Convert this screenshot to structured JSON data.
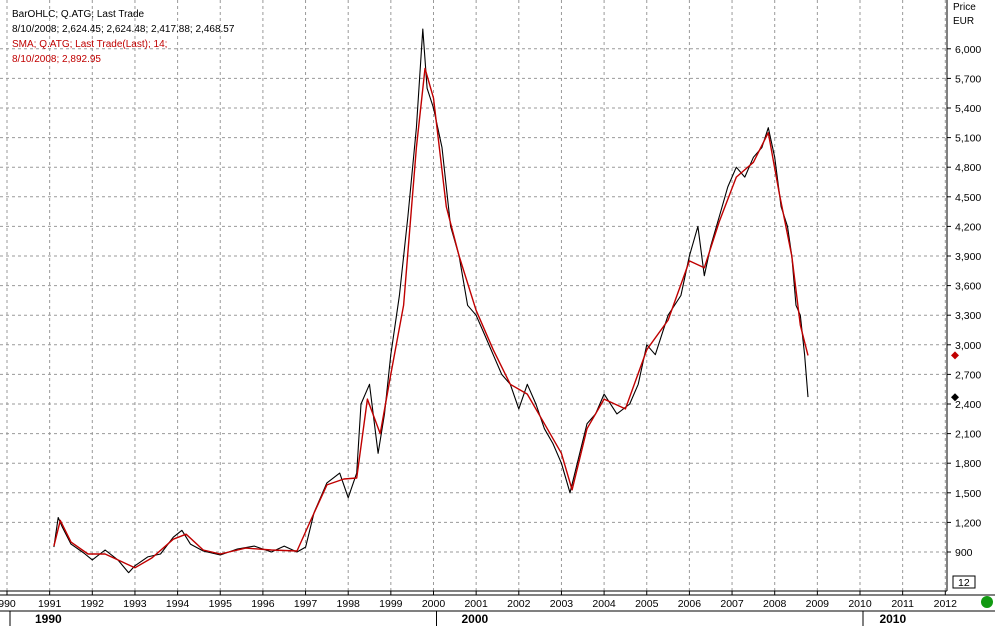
{
  "header": {
    "series_line": "BarOHLC; Q.ATG; Last Trade",
    "ohlc_line": "8/10/2008; 2,624.45; 2,624.48; 2,417.88; 2,468.57",
    "sma_line": "SMA; Q.ATG; Last Trade(Last); 14;",
    "sma_value_line": "8/10/2008; 2,892.95"
  },
  "axis": {
    "price_title": "Price",
    "currency": "EUR",
    "bottom_value": "12"
  },
  "colors": {
    "price_series": "#000000",
    "sma_series": "#c00000",
    "status": "#129a12"
  },
  "chart_data": {
    "type": "line",
    "title": "",
    "xlabel": "",
    "ylabel": "Price",
    "y_unit": "EUR",
    "ylim": [
      0,
      6300
    ],
    "y_ticks": [
      "900",
      "1,200",
      "1,500",
      "1,800",
      "2,100",
      "2,400",
      "2,700",
      "3,000",
      "3,300",
      "3,600",
      "3,900",
      "4,200",
      "4,500",
      "4,800",
      "5,100",
      "5,400",
      "5,700",
      "6,000"
    ],
    "x_ticks": [
      "990",
      "1991",
      "1992",
      "1993",
      "1994",
      "1995",
      "1996",
      "1997",
      "1998",
      "1999",
      "2000",
      "2001",
      "2002",
      "2003",
      "2004",
      "2005",
      "2006",
      "2007",
      "2008",
      "2009",
      "2010",
      "2011",
      "2012"
    ],
    "decades": [
      "1990",
      "2000",
      "2010"
    ],
    "grid": true,
    "series": [
      {
        "name": "Q.ATG",
        "role": "price",
        "x": [
          1991.1,
          1991.2,
          1991.3,
          1991.5,
          1991.8,
          1992.0,
          1992.3,
          1992.6,
          1992.85,
          1993.0,
          1993.3,
          1993.6,
          1993.9,
          1994.1,
          1994.3,
          1994.6,
          1995.0,
          1995.4,
          1995.8,
          1996.2,
          1996.5,
          1996.8,
          1997.0,
          1997.2,
          1997.5,
          1997.8,
          1998.0,
          1998.2,
          1998.3,
          1998.5,
          1998.7,
          1998.85,
          1999.0,
          1999.2,
          1999.4,
          1999.6,
          1999.75,
          1999.85,
          2000.0,
          2000.2,
          2000.4,
          2000.6,
          2000.8,
          2001.0,
          2001.2,
          2001.4,
          2001.6,
          2001.8,
          2002.0,
          2002.2,
          2002.4,
          2002.6,
          2002.8,
          2003.0,
          2003.2,
          2003.4,
          2003.6,
          2003.8,
          2004.0,
          2004.3,
          2004.6,
          2004.8,
          2005.0,
          2005.2,
          2005.5,
          2005.8,
          2006.0,
          2006.2,
          2006.35,
          2006.5,
          2006.7,
          2006.9,
          2007.1,
          2007.3,
          2007.5,
          2007.7,
          2007.85,
          2008.0,
          2008.15,
          2008.3,
          2008.4,
          2008.5,
          2008.6,
          2008.7,
          2008.78
        ],
        "values": [
          950,
          1250,
          1150,
          980,
          890,
          820,
          920,
          820,
          690,
          760,
          850,
          880,
          1050,
          1120,
          980,
          910,
          870,
          930,
          960,
          900,
          960,
          900,
          950,
          1300,
          1600,
          1700,
          1450,
          1700,
          2400,
          2600,
          1900,
          2300,
          2900,
          3500,
          4300,
          5200,
          6200,
          5600,
          5400,
          5000,
          4200,
          3900,
          3400,
          3300,
          3100,
          2900,
          2700,
          2600,
          2350,
          2600,
          2400,
          2150,
          2000,
          1800,
          1500,
          1850,
          2200,
          2300,
          2500,
          2300,
          2400,
          2600,
          3000,
          2900,
          3300,
          3500,
          3900,
          4200,
          3700,
          4000,
          4300,
          4600,
          4800,
          4700,
          4900,
          5000,
          5200,
          4900,
          4400,
          4200,
          3900,
          3400,
          3300,
          2900,
          2470
        ]
      },
      {
        "name": "SMA 14",
        "role": "sma",
        "x": [
          1991.1,
          1991.25,
          1991.5,
          1991.9,
          1992.3,
          1992.7,
          1993.0,
          1993.4,
          1993.9,
          1994.2,
          1994.6,
          1995.0,
          1995.6,
          1996.2,
          1996.8,
          1997.1,
          1997.5,
          1997.9,
          1998.2,
          1998.45,
          1998.75,
          1999.0,
          1999.3,
          1999.6,
          1999.8,
          2000.0,
          2000.3,
          2000.6,
          2001.0,
          2001.4,
          2001.8,
          2002.2,
          2002.6,
          2003.0,
          2003.25,
          2003.6,
          2004.0,
          2004.5,
          2005.0,
          2005.5,
          2006.0,
          2006.35,
          2006.7,
          2007.1,
          2007.5,
          2007.85,
          2008.1,
          2008.4,
          2008.6,
          2008.78
        ],
        "values": [
          960,
          1220,
          1000,
          880,
          880,
          800,
          740,
          840,
          1030,
          1080,
          920,
          880,
          940,
          920,
          910,
          1200,
          1580,
          1640,
          1650,
          2450,
          2100,
          2700,
          3400,
          5000,
          5800,
          5500,
          4400,
          3900,
          3350,
          2950,
          2600,
          2500,
          2200,
          1900,
          1530,
          2150,
          2450,
          2350,
          2950,
          3250,
          3850,
          3780,
          4250,
          4700,
          4850,
          5150,
          4550,
          3900,
          3200,
          2892.95
        ]
      }
    ],
    "last_price": 2468.57,
    "last_sma": 2892.95
  }
}
